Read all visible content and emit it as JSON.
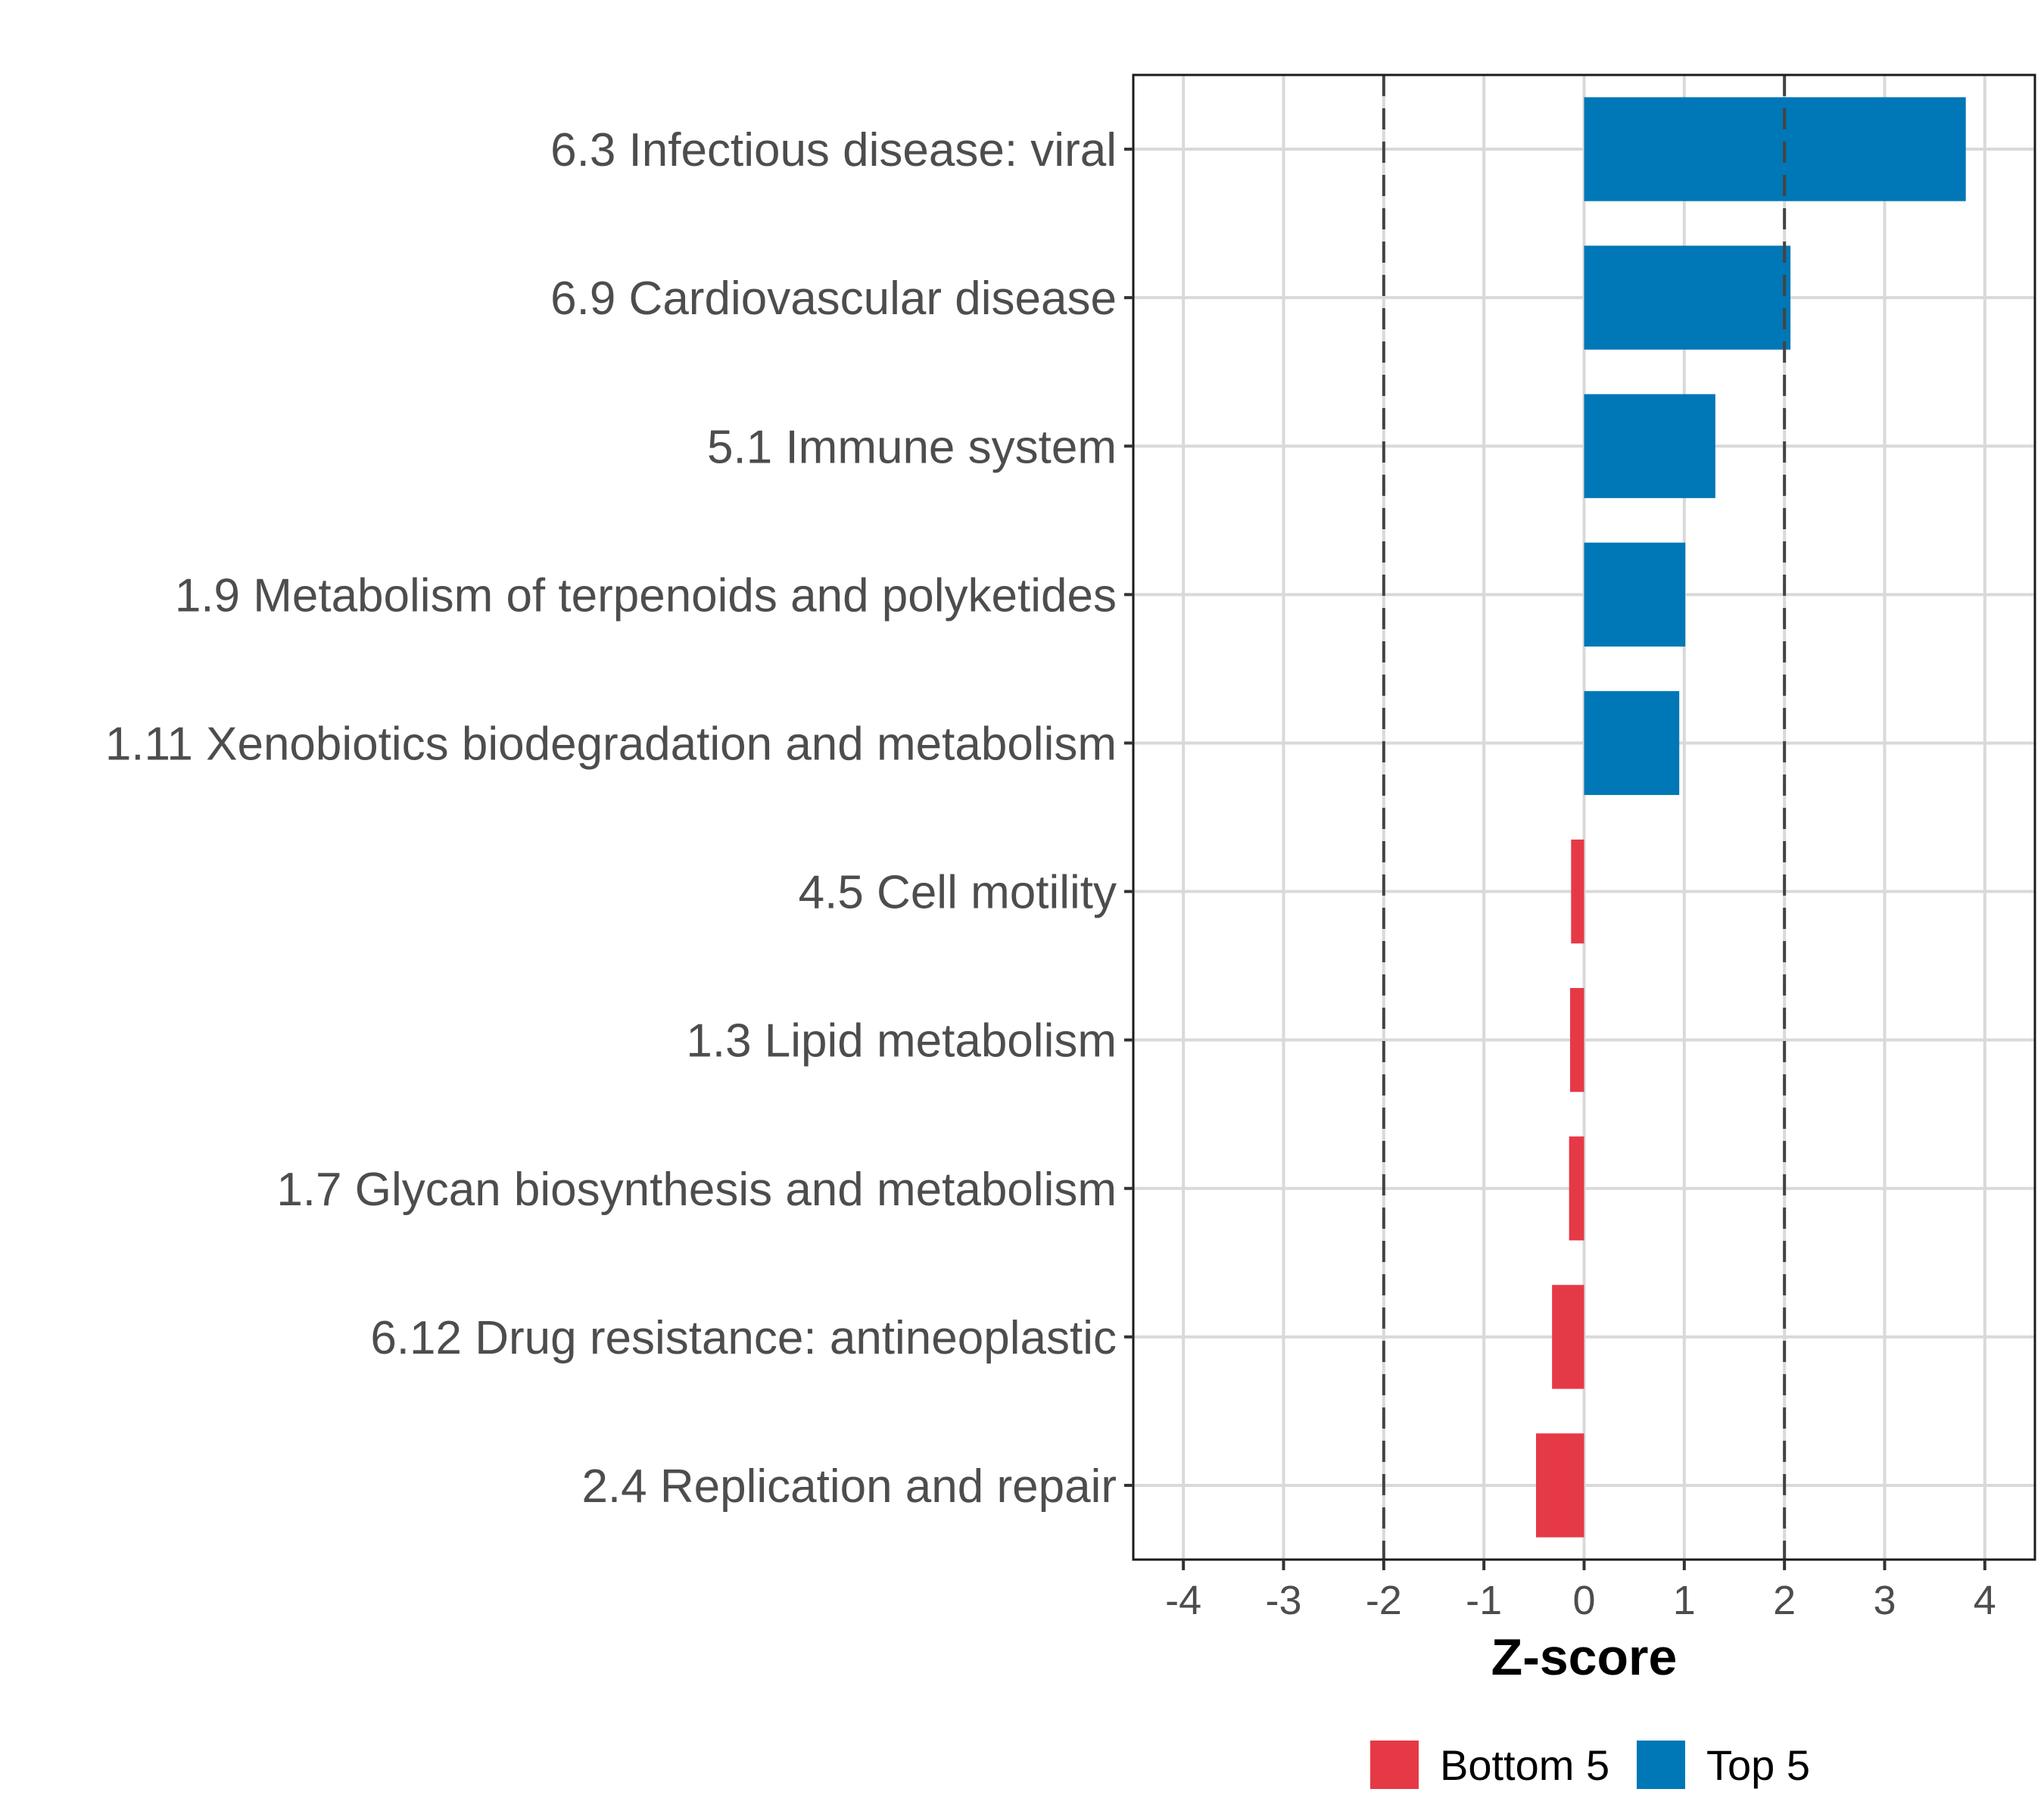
{
  "chart_data": {
    "type": "bar",
    "orientation": "horizontal",
    "title": "",
    "xlabel": "Z-score",
    "ylabel": "",
    "xlim": [
      -4.5,
      4.5
    ],
    "x_ticks": [
      -4,
      -3,
      -2,
      -1,
      0,
      1,
      2,
      3,
      4
    ],
    "x_tick_labels": [
      "-4",
      "-3",
      "-2",
      "-1",
      "0",
      "1",
      "2",
      "3",
      "4"
    ],
    "grid": true,
    "reference_lines": [
      {
        "x": -2,
        "style": "dashed"
      },
      {
        "x": 2,
        "style": "dashed"
      }
    ],
    "categories": [
      "6.3 Infectious disease: viral",
      "6.9 Cardiovascular disease",
      "5.1 Immune system",
      "1.9 Metabolism of terpenoids and polyketides",
      "1.11 Xenobiotics biodegradation and metabolism",
      "4.5 Cell motility",
      "1.3 Lipid metabolism",
      "1.7 Glycan biosynthesis and metabolism",
      "6.12 Drug resistance: antineoplastic",
      "2.4 Replication and repair"
    ],
    "values": [
      3.81,
      2.06,
      1.31,
      1.01,
      0.95,
      -0.13,
      -0.14,
      -0.15,
      -0.32,
      -0.48
    ],
    "groups": [
      "Top 5",
      "Top 5",
      "Top 5",
      "Top 5",
      "Top 5",
      "Bottom 5",
      "Bottom 5",
      "Bottom 5",
      "Bottom 5",
      "Bottom 5"
    ],
    "legend": {
      "position": "bottom",
      "entries": [
        {
          "label": "Bottom 5",
          "color": "#e63946"
        },
        {
          "label": "Top 5",
          "color": "#0077b6"
        }
      ]
    },
    "colors": {
      "Top 5": "#0077b6",
      "Bottom 5": "#e63946"
    }
  }
}
